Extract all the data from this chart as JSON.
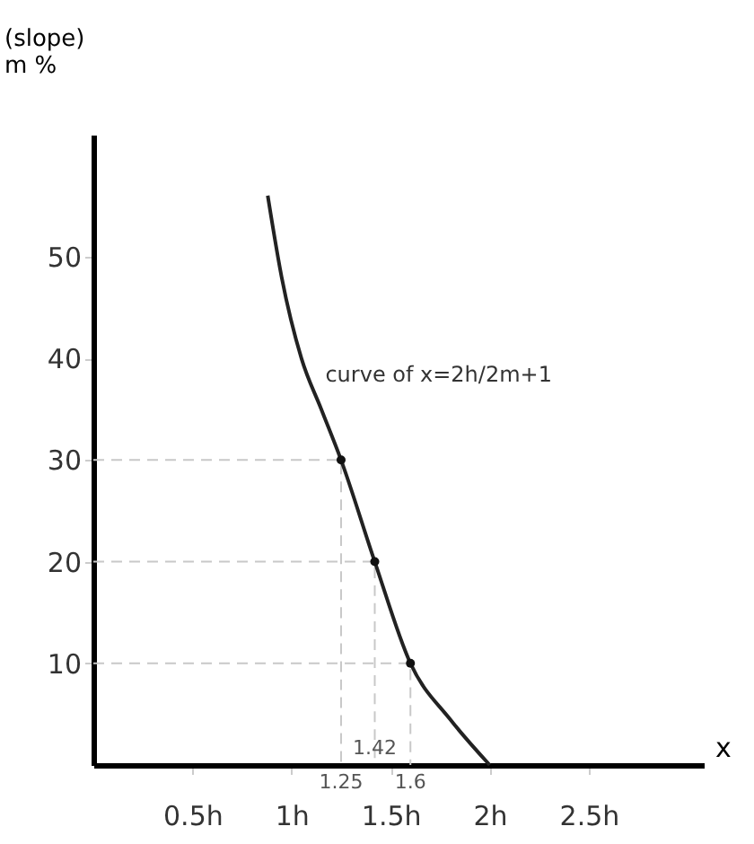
{
  "chart_data": {
    "type": "line",
    "ylabel": "(slope)\nm %",
    "xlabel": "x",
    "xlim": [
      0,
      3.08
    ],
    "ylim": [
      0,
      62
    ],
    "xticks": [
      {
        "value": 0.5,
        "label": "0.5h"
      },
      {
        "value": 1,
        "label": "1h"
      },
      {
        "value": 1.5,
        "label": "1.5h"
      },
      {
        "value": 2,
        "label": "2h"
      },
      {
        "value": 2.5,
        "label": "2.5h"
      }
    ],
    "yticks": [
      10,
      20,
      30,
      40,
      50
    ],
    "grid": false,
    "series": [
      {
        "type": "line",
        "color": "#c8c8c8",
        "line_style": "dashed",
        "x": [
          0,
          1.25,
          1.25
        ],
        "values": [
          30,
          30,
          0
        ]
      },
      {
        "type": "line",
        "color": "#c8c8c8",
        "line_style": "dashed",
        "x": [
          0,
          1.42,
          1.42
        ],
        "values": [
          20,
          20,
          0
        ]
      },
      {
        "type": "line",
        "color": "#c8c8c8",
        "line_style": "dashed",
        "x": [
          0,
          1.6,
          1.6
        ],
        "values": [
          10,
          10,
          0
        ]
      },
      {
        "color": "#222222",
        "line_style": "solid",
        "x": [
          0.88,
          0.95,
          1.05,
          1.15,
          1.25,
          1.42,
          1.6,
          1.8,
          2.0
        ],
        "values": [
          56,
          48,
          40,
          35,
          30,
          20,
          10,
          4.5,
          0
        ]
      },
      {
        "type": "scatter",
        "color": "#111111",
        "marker": "circle",
        "x": [
          1.25,
          1.42,
          1.6
        ],
        "values": [
          30,
          20,
          10
        ]
      }
    ],
    "annotations": [
      "curve of x=2h/2m+1",
      {
        "text": "1.25",
        "x": 1.25,
        "y": 0
      },
      {
        "text": "1.42",
        "x": 1.42,
        "y": 0
      },
      {
        "text": "1.6",
        "x": 1.6,
        "y": 0
      }
    ]
  }
}
